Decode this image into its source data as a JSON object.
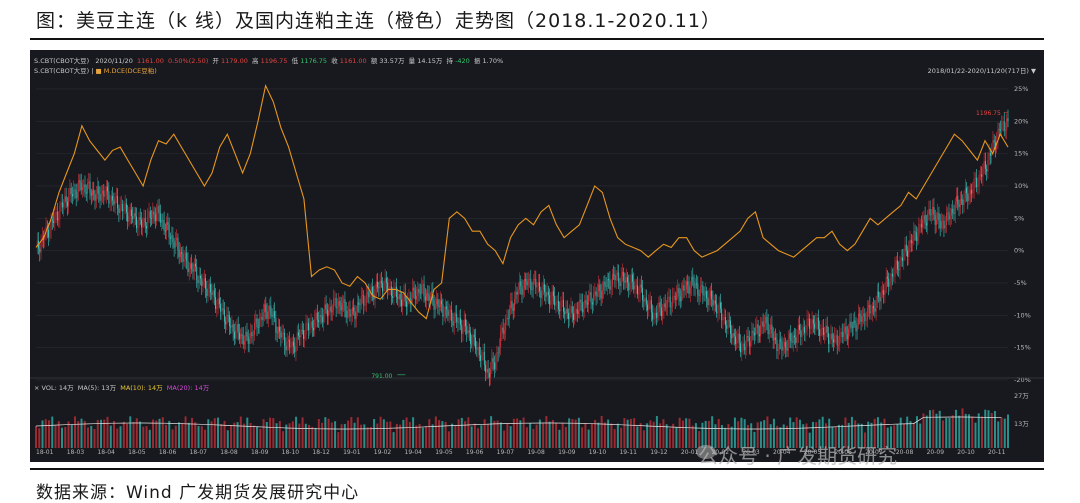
{
  "figure": {
    "title": "图：美豆主连（k 线）及国内连粕主连（橙色）走势图（2018.1-2020.11）",
    "source": "数据来源：Wind 广发期货发展研究中心",
    "watermark": "公众号 · 广发期货研究"
  },
  "header": {
    "code": "S.CBT(CBOT大豆)",
    "date": "2020/11/20",
    "price": "1161.00",
    "change": "0.50%(2.50)",
    "open_label": "开",
    "open": "1179.00",
    "high_label": "高",
    "high": "1196.75",
    "low_label": "低",
    "low": "1176.75",
    "close_label": "收",
    "close": "1161.00",
    "amount_label": "额",
    "amount": "33.57万",
    "vol_label": "量",
    "vol": "14.15万",
    "oi_label": "持",
    "oi": "-420",
    "amp_label": "振",
    "amp": "1.70%",
    "line2_code": "S.CBT(CBOT大豆)",
    "line2_overlay": "M.DCE(DCE豆粕)",
    "range_text": "2018/01/22-2020/11/20(717日)"
  },
  "volume_panel": {
    "vol_text": "VOL: 14万",
    "ma5_text": "MA(5): 13万",
    "ma10_text": "MA(10): 14万",
    "ma20_text": "MA(20): 14万",
    "axis_labels": [
      "27万",
      "13万"
    ]
  },
  "colors": {
    "background": "#17191e",
    "up": "#d4303a",
    "down": "#3fc9c0",
    "overlay": "#e8961e",
    "axis_text": "#b8b8b8"
  },
  "chart_data": {
    "type": "line",
    "y_axis_label_percent": [
      "25%",
      "20%",
      "15%",
      "10%",
      "5%",
      "0%",
      "-5%",
      "-10%",
      "-15%",
      "-20%"
    ],
    "y_axis_values": [
      25,
      20,
      15,
      10,
      5,
      0,
      -5,
      -10,
      -15,
      -20
    ],
    "ylim": [
      -20,
      27
    ],
    "x_tick_labels": [
      "18-01",
      "18-03",
      "18-04",
      "18-05",
      "18-06",
      "18-07",
      "18-08",
      "18-09",
      "18-10",
      "18-12",
      "19-01",
      "19-02",
      "19-04",
      "19-05",
      "19-06",
      "19-07",
      "19-08",
      "19-09",
      "19-10",
      "19-11",
      "19-12",
      "20-01",
      "20-02",
      "20-03",
      "20-04",
      "20-05",
      "20-06",
      "20-07",
      "20-08",
      "20-09",
      "20-10",
      "20-11"
    ],
    "annotations": [
      {
        "text": "1196.75",
        "x": 1.0,
        "y": 21.4
      },
      {
        "text": "791.00",
        "x": 0.38,
        "y": -19.2
      }
    ],
    "series": [
      {
        "name": "M.DCE(DCE豆粕)",
        "kind": "line",
        "values": [
          0.5,
          2,
          5,
          9,
          12,
          15,
          19.3,
          17,
          15.5,
          14,
          15.5,
          16,
          14,
          12,
          10,
          14,
          17,
          16.5,
          18,
          16,
          14,
          12,
          10,
          12,
          16,
          18,
          15,
          12,
          15,
          20,
          25.5,
          23,
          19,
          16,
          12,
          8,
          -4,
          -3,
          -2.5,
          -3,
          -5,
          -5.5,
          -4,
          -5,
          -7,
          -7.5,
          -6,
          -6,
          -6.5,
          -8,
          -9.5,
          -10.5,
          -6,
          -5,
          5,
          6,
          5,
          3,
          3,
          1,
          0,
          -2,
          2,
          4,
          5,
          4,
          6,
          7,
          4,
          2,
          3,
          4,
          7,
          10,
          9,
          5,
          2,
          1,
          0.5,
          0,
          -1,
          0,
          1,
          0.5,
          2,
          2,
          0,
          -1,
          -0.5,
          0,
          1,
          2,
          3,
          5,
          6,
          2,
          1,
          0,
          -0.5,
          -1,
          0,
          1,
          2,
          2,
          3,
          1,
          0,
          1,
          3,
          5,
          4,
          5,
          6,
          7,
          9,
          8,
          10,
          12,
          14,
          16,
          18,
          17,
          15.5,
          14,
          17,
          15,
          18,
          16
        ]
      },
      {
        "name": "S.CBT(CBOT大豆)",
        "kind": "candlestick",
        "values": [
          0,
          2,
          4,
          6,
          8,
          9,
          10,
          9.5,
          8.5,
          9,
          8,
          7,
          6,
          5,
          4,
          5,
          6,
          4,
          2,
          0,
          -2,
          -3,
          -5,
          -6,
          -8,
          -10,
          -12,
          -13,
          -14,
          -12,
          -10,
          -9,
          -12,
          -14,
          -15,
          -13,
          -12,
          -11,
          -10,
          -9,
          -8,
          -9,
          -10,
          -8,
          -7,
          -6,
          -5,
          -6,
          -7,
          -8,
          -7,
          -6,
          -7,
          -8,
          -9,
          -10,
          -11,
          -12,
          -14,
          -16,
          -19,
          -17,
          -12,
          -9,
          -6,
          -5,
          -5,
          -6,
          -7,
          -8,
          -9,
          -10,
          -9,
          -8,
          -7,
          -6,
          -5,
          -4,
          -4.5,
          -5,
          -6,
          -8,
          -10,
          -9,
          -8,
          -7,
          -6,
          -5,
          -6,
          -7,
          -8,
          -10,
          -12,
          -14,
          -15,
          -13,
          -12,
          -11,
          -14,
          -15,
          -14,
          -13,
          -12,
          -11,
          -12,
          -13,
          -14,
          -13,
          -12,
          -11,
          -10,
          -9,
          -7,
          -5,
          -3,
          -1,
          1,
          3,
          5,
          6,
          4,
          5,
          7,
          8,
          9,
          11,
          13,
          16,
          19,
          20
        ]
      }
    ]
  }
}
